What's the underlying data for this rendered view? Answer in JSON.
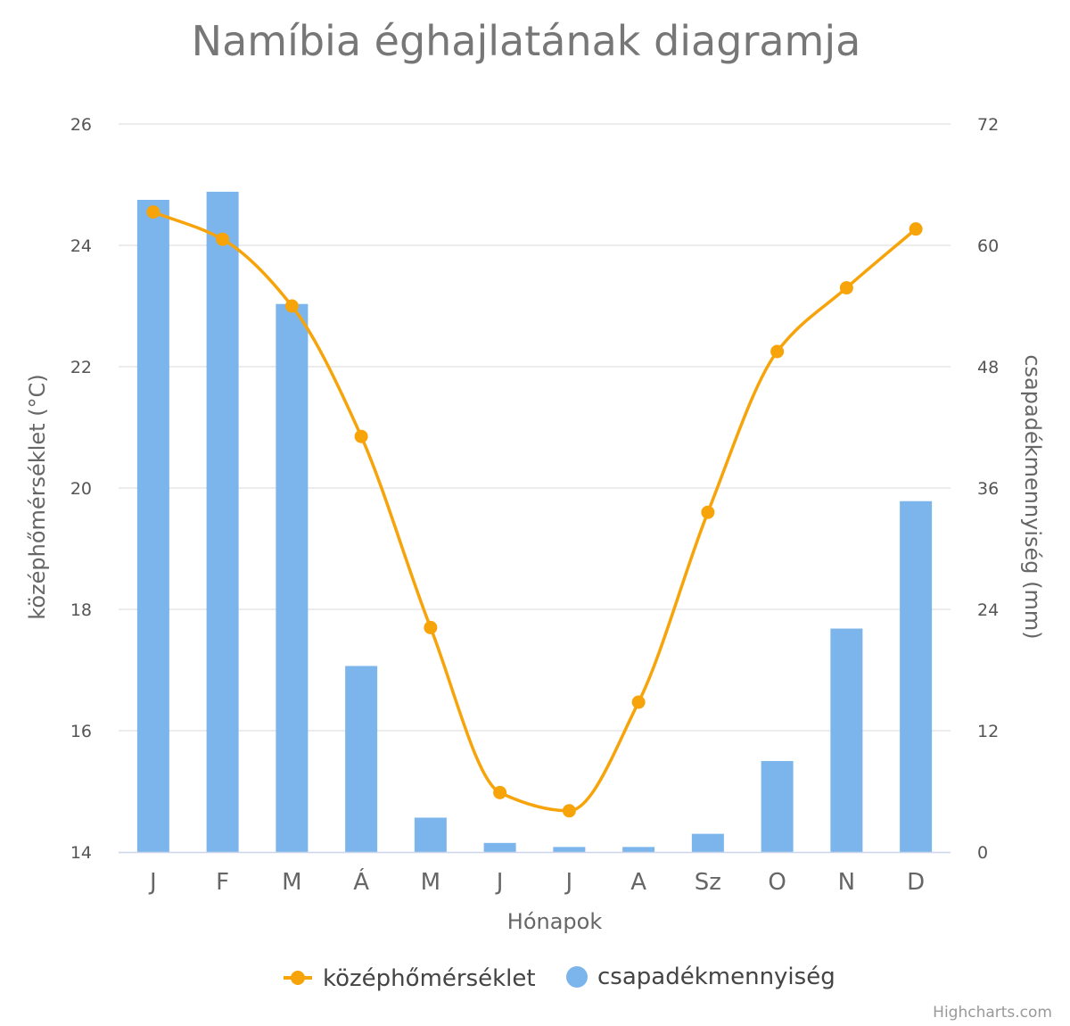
{
  "chart_data": {
    "type": "bar",
    "title": "Namíbia éghajlatának diagramja",
    "xlabel": "Hónapok",
    "ylabel_left": "középhőmérséklet (°C)",
    "ylabel_right": "csapadékmennyiség (mm)",
    "categories": [
      "J",
      "F",
      "M",
      "Á",
      "M",
      "J",
      "J",
      "A",
      "Sz",
      "O",
      "N",
      "D"
    ],
    "ylim_left": [
      14,
      26
    ],
    "ylim_right": [
      0,
      72
    ],
    "yticks_left": [
      14,
      16,
      18,
      20,
      22,
      24,
      26
    ],
    "yticks_right": [
      0,
      12,
      24,
      36,
      48,
      60,
      72
    ],
    "grid": true,
    "legend_position": "bottom-center",
    "series": [
      {
        "name": "középhőmérséklet",
        "type": "spline",
        "axis": "left",
        "color": "#f7a30a",
        "values": [
          24.55,
          24.1,
          23.0,
          20.85,
          17.7,
          14.98,
          14.68,
          16.47,
          19.6,
          22.25,
          23.3,
          24.27
        ]
      },
      {
        "name": "csapadékmennyiség",
        "type": "column",
        "axis": "right",
        "color": "#7cb5ec",
        "values": [
          64.5,
          65.3,
          54.2,
          18.4,
          3.4,
          0.9,
          0.5,
          0.5,
          1.8,
          9.0,
          22.1,
          34.7
        ]
      }
    ]
  },
  "credits": "Highcharts.com"
}
